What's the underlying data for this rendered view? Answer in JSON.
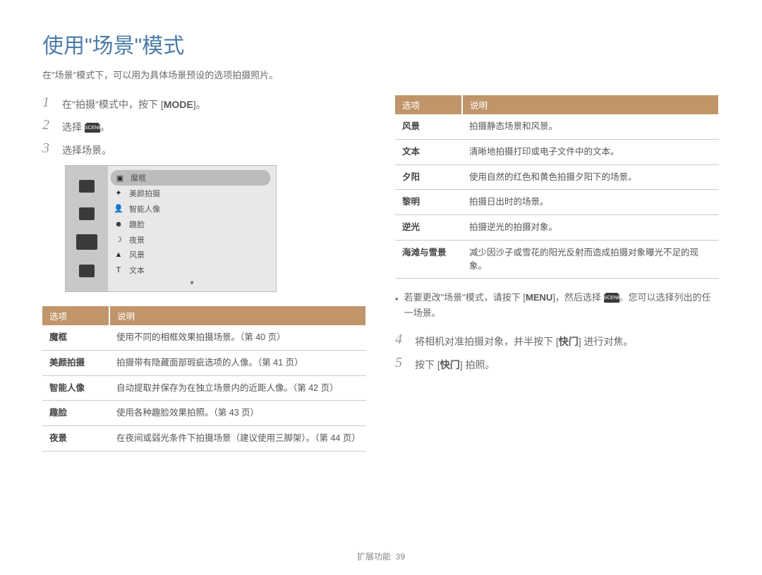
{
  "title": "使用\"场景\"模式",
  "subtitle": "在\"场景\"模式下，可以用为具体场景预设的选项拍摄照片。",
  "steps": {
    "s1": {
      "num": "1",
      "text_pre": "在\"拍摄\"模式中，按下 [",
      "btn": "MODE",
      "text_post": "]。"
    },
    "s2": {
      "num": "2",
      "text_pre": "选择 ",
      "text_post": "。"
    },
    "s3": {
      "num": "3",
      "text": "选择场景。"
    },
    "s4": {
      "num": "4",
      "text_pre": "将相机对准拍摄对象，并半按下 [",
      "btn": "快门",
      "text_post": "] 进行对焦。"
    },
    "s5": {
      "num": "5",
      "text_pre": "按下 [",
      "btn": "快门",
      "text_post": "] 拍照。"
    }
  },
  "scene_selector": {
    "items": [
      {
        "label": "魔框",
        "glyph": "▣"
      },
      {
        "label": "美颜拍摄",
        "glyph": "✦"
      },
      {
        "label": "智能人像",
        "glyph": "👤"
      },
      {
        "label": "趣脸",
        "glyph": "☻"
      },
      {
        "label": "夜景",
        "glyph": "☽"
      },
      {
        "label": "风景",
        "glyph": "▲"
      },
      {
        "label": "文本",
        "glyph": "T"
      }
    ],
    "scene_label": "SCENE"
  },
  "table_headers": {
    "option": "选项",
    "desc": "说明"
  },
  "left_table": [
    {
      "k": "魔框",
      "v": "使用不同的相框效果拍摄场景。（第 40 页）"
    },
    {
      "k": "美颜拍摄",
      "v": "拍摄带有隐藏面部瑕疵选项的人像。（第 41 页）"
    },
    {
      "k": "智能人像",
      "v": "自动提取并保存为在独立场景内的近距人像。（第 42 页）"
    },
    {
      "k": "趣脸",
      "v": "使用各种趣脸效果拍照。（第 43 页）"
    },
    {
      "k": "夜景",
      "v": "在夜间或弱光条件下拍摄场景（建议使用三脚架）。（第 44 页）"
    }
  ],
  "right_table": [
    {
      "k": "风景",
      "v": "拍摄静态场景和风景。"
    },
    {
      "k": "文本",
      "v": "清晰地拍摄打印或电子文件中的文本。"
    },
    {
      "k": "夕阳",
      "v": "使用自然的红色和黄色拍摄夕阳下的场景。"
    },
    {
      "k": "黎明",
      "v": "拍摄日出时的场景。"
    },
    {
      "k": "逆光",
      "v": "拍摄逆光的拍摄对象。"
    },
    {
      "k": "海滩与雪景",
      "v": "减少因沙子或雪花的阳光反射而造成拍摄对象曝光不足的现象。"
    }
  ],
  "note": {
    "line1_pre": "若要更改\"场景\"模式，请按下 [",
    "menu": "MENU",
    "line1_mid": "]，然后选择 ",
    "line1_post": "。您可以选择列出的任一场景。"
  },
  "footer": {
    "section": "扩展功能",
    "page": "39"
  },
  "colors": {
    "title": "#4a7ba8",
    "table_header_bg": "#c0956a",
    "text": "#555555",
    "border": "#cccccc"
  }
}
